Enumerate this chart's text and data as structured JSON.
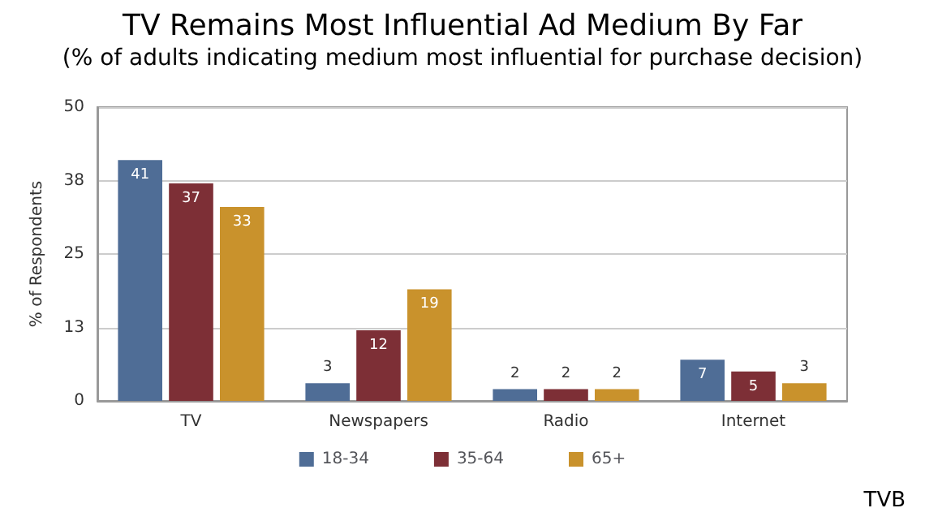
{
  "chart_data": {
    "type": "bar",
    "title": "TV Remains Most Influential Ad Medium By Far",
    "subtitle": "(% of adults indicating medium most influential for purchase decision)",
    "ylabel": "% of Respondents",
    "categories": [
      "TV",
      "Newspapers",
      "Radio",
      "Internet"
    ],
    "series": [
      {
        "name": "18-34",
        "color": "#4f6d96",
        "values": [
          41,
          3,
          2,
          7
        ]
      },
      {
        "name": "35-64",
        "color": "#7d2f36",
        "values": [
          37,
          12,
          2,
          5
        ]
      },
      {
        "name": "65+",
        "color": "#c9922c",
        "values": [
          33,
          19,
          2,
          3
        ]
      }
    ],
    "ylim": [
      0,
      50
    ],
    "yticks": [
      0,
      {
        "value": 12.5,
        "label": "13"
      },
      25,
      {
        "value": 37.5,
        "label": "38"
      },
      50
    ],
    "grid": "y",
    "legend": "bottom",
    "data_labels": true,
    "annotations": [
      "TVB"
    ]
  }
}
